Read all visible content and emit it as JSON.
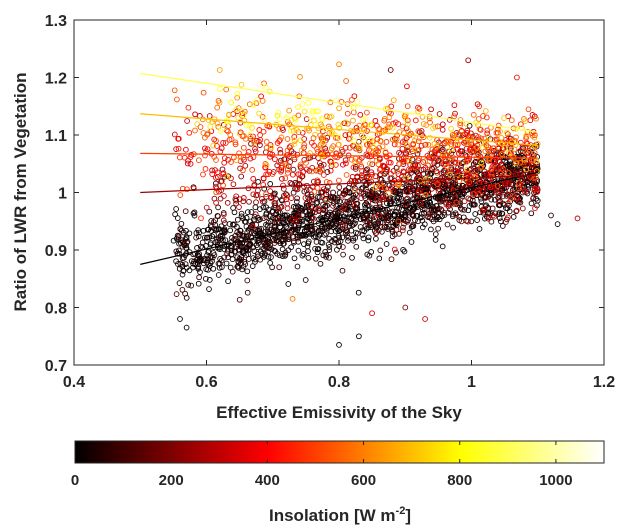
{
  "chart_data": {
    "type": "scatter",
    "title": "",
    "xlabel": "Effective Emissivity of the Sky",
    "ylabel": "Ratio of LWR from Vegetation",
    "xlim": [
      0.4,
      1.2
    ],
    "ylim": [
      0.7,
      1.3
    ],
    "xticks": [
      0.4,
      0.6,
      0.8,
      1.0,
      1.2
    ],
    "xtick_labels": [
      "0.4",
      "0.6",
      "0.8",
      "1",
      "1.2"
    ],
    "yticks": [
      0.7,
      0.8,
      0.9,
      1.0,
      1.1,
      1.2,
      1.3
    ],
    "ytick_labels": [
      "0.7",
      "0.8",
      "0.9",
      "1",
      "1.1",
      "1.2",
      "1.3"
    ],
    "grid": false,
    "colormap": "hot",
    "colorbar": {
      "label": "Insolation [W m",
      "label_superscript": "-2",
      "label_close": "]",
      "range": [
        0,
        1100
      ],
      "ticks": [
        0,
        200,
        400,
        600,
        800,
        1000
      ],
      "tick_labels": [
        "0",
        "200",
        "400",
        "600",
        "800",
        "1000"
      ],
      "placement": "bottom"
    },
    "marker": "open-circle",
    "fit_lines": [
      {
        "insolation": 0,
        "x": [
          0.5,
          1.1
        ],
        "y": [
          0.875,
          1.035
        ]
      },
      {
        "insolation": 250,
        "x": [
          0.5,
          1.1
        ],
        "y": [
          1.0,
          1.03
        ]
      },
      {
        "insolation": 500,
        "x": [
          0.5,
          1.1
        ],
        "y": [
          1.068,
          1.06
        ]
      },
      {
        "insolation": 700,
        "x": [
          0.5,
          1.1
        ],
        "y": [
          1.137,
          1.082
        ]
      },
      {
        "insolation": 900,
        "x": [
          0.5,
          1.1
        ],
        "y": [
          1.207,
          1.105
        ]
      }
    ],
    "clusters": [
      {
        "insolation_range": [
          0,
          60
        ],
        "x_range": [
          0.55,
          1.1
        ],
        "trend": {
          "a": 0.875,
          "b": 0.27
        },
        "spread": 0.028,
        "count": 1500
      },
      {
        "insolation_range": [
          0,
          150
        ],
        "x_range": [
          0.55,
          1.1
        ],
        "trend": {
          "a": 0.88,
          "b": 0.25
        },
        "spread": 0.045,
        "count": 260
      },
      {
        "insolation_range": [
          150,
          350
        ],
        "x_range": [
          0.6,
          1.1
        ],
        "trend": {
          "a": 1.0,
          "b": 0.05
        },
        "spread": 0.04,
        "count": 420
      },
      {
        "insolation_range": [
          300,
          550
        ],
        "x_range": [
          0.55,
          1.1
        ],
        "trend": {
          "a": 1.07,
          "b": 0.0
        },
        "spread": 0.04,
        "count": 520
      },
      {
        "insolation_range": [
          500,
          750
        ],
        "x_range": [
          0.58,
          1.1
        ],
        "trend": {
          "a": 1.12,
          "b": -0.08
        },
        "spread": 0.035,
        "count": 300
      },
      {
        "insolation_range": [
          750,
          950
        ],
        "x_range": [
          0.6,
          0.85
        ],
        "trend": {
          "a": 1.15,
          "b": -0.1
        },
        "spread": 0.025,
        "count": 60
      }
    ],
    "outliers": [
      {
        "x": 0.8,
        "y": 0.735,
        "insolation": 20
      },
      {
        "x": 0.83,
        "y": 0.75,
        "insolation": 30
      },
      {
        "x": 0.85,
        "y": 0.79,
        "insolation": 350
      },
      {
        "x": 0.878,
        "y": 1.213,
        "insolation": 150
      },
      {
        "x": 0.8,
        "y": 1.223,
        "insolation": 600
      },
      {
        "x": 0.995,
        "y": 1.23,
        "insolation": 250
      },
      {
        "x": 0.62,
        "y": 1.213,
        "insolation": 650
      },
      {
        "x": 0.73,
        "y": 0.815,
        "insolation": 600
      },
      {
        "x": 1.16,
        "y": 0.955,
        "insolation": 300
      },
      {
        "x": 1.13,
        "y": 0.945,
        "insolation": 30
      },
      {
        "x": 1.12,
        "y": 0.96,
        "insolation": 50
      },
      {
        "x": 0.56,
        "y": 0.78,
        "insolation": 10
      },
      {
        "x": 0.57,
        "y": 0.765,
        "insolation": 10
      },
      {
        "x": 0.9,
        "y": 0.8,
        "insolation": 200
      },
      {
        "x": 0.93,
        "y": 0.78,
        "insolation": 300
      }
    ]
  }
}
